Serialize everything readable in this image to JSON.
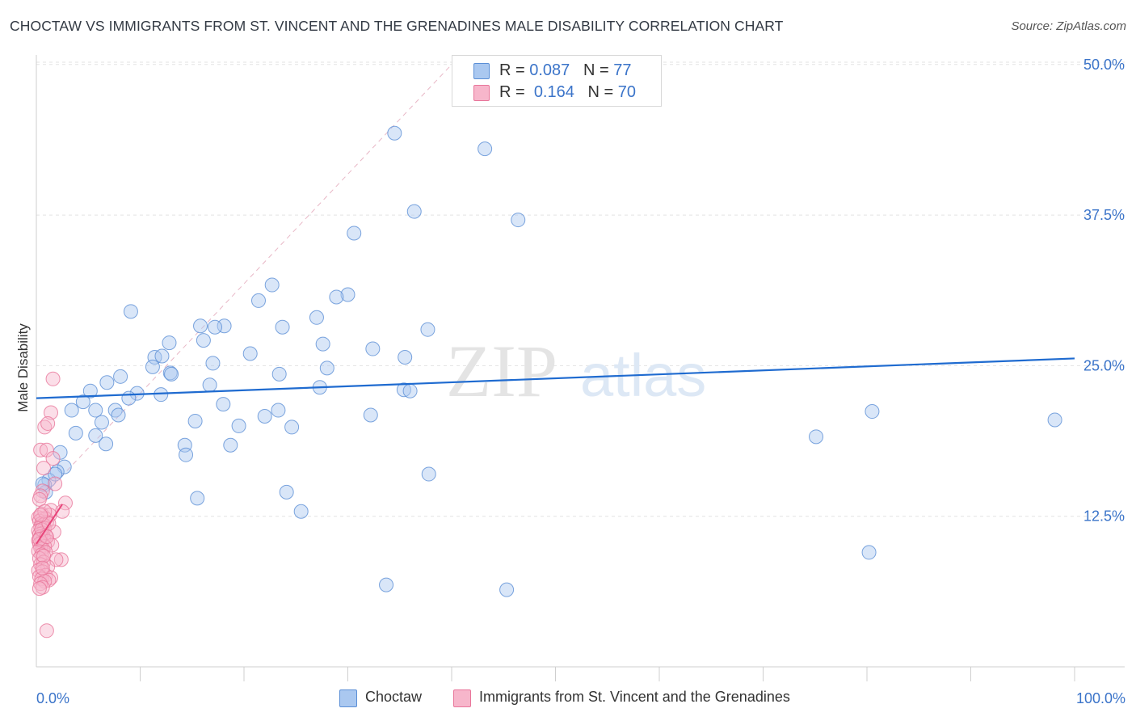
{
  "title": "CHOCTAW VS IMMIGRANTS FROM ST. VINCENT AND THE GRENADINES MALE DISABILITY CORRELATION CHART",
  "source": "Source: ZipAtlas.com",
  "watermark": {
    "zip": "ZIP",
    "atlas": "atlas"
  },
  "legend": {
    "r_label": "R =",
    "n_label": "N =",
    "rows": [
      {
        "r": "0.087",
        "n": "77"
      },
      {
        "r": "0.164",
        "n": "70"
      }
    ]
  },
  "colors": {
    "blue_fill": "#aac8f0",
    "blue_stroke": "#5b8fd6",
    "blue_line": "#1f6bd0",
    "pink_fill": "#f7b6cb",
    "pink_stroke": "#e8759a",
    "pink_line": "#e8457a",
    "tick_label": "#3b74c9"
  },
  "chart_data": {
    "type": "scatter",
    "title": "CHOCTAW VS IMMIGRANTS FROM ST. VINCENT AND THE GRENADINES MALE DISABILITY CORRELATION CHART",
    "xlabel": "",
    "ylabel": "Male Disability",
    "xlim": [
      0,
      100
    ],
    "ylim": [
      0,
      52
    ],
    "x_tick_labels": [
      "0.0%",
      "100.0%"
    ],
    "y_ticks": [
      12.5,
      25.0,
      37.5,
      50.0
    ],
    "y_tick_labels": [
      "12.5%",
      "25.0%",
      "37.5%",
      "50.0%"
    ],
    "series": [
      {
        "name": "Choctaw",
        "color": "blue",
        "trend": [
          [
            0,
            22.3
          ],
          [
            100,
            25.6
          ]
        ],
        "points": [
          [
            34.5,
            44.3
          ],
          [
            43.2,
            43.0
          ],
          [
            36.4,
            37.8
          ],
          [
            46.4,
            37.1
          ],
          [
            30.6,
            36.0
          ],
          [
            22.7,
            31.7
          ],
          [
            30.0,
            30.9
          ],
          [
            28.9,
            30.7
          ],
          [
            21.4,
            30.4
          ],
          [
            9.1,
            29.5
          ],
          [
            27.0,
            29.0
          ],
          [
            18.1,
            28.3
          ],
          [
            17.2,
            28.2
          ],
          [
            15.8,
            28.3
          ],
          [
            23.7,
            28.2
          ],
          [
            37.7,
            28.0
          ],
          [
            12.8,
            26.9
          ],
          [
            16.1,
            27.1
          ],
          [
            27.6,
            26.8
          ],
          [
            32.4,
            26.4
          ],
          [
            20.6,
            26.0
          ],
          [
            11.4,
            25.7
          ],
          [
            12.1,
            25.8
          ],
          [
            35.5,
            25.7
          ],
          [
            17.0,
            25.2
          ],
          [
            11.2,
            24.9
          ],
          [
            28.0,
            24.8
          ],
          [
            23.4,
            24.3
          ],
          [
            12.9,
            24.4
          ],
          [
            13.0,
            24.3
          ],
          [
            8.1,
            24.1
          ],
          [
            6.8,
            23.6
          ],
          [
            16.7,
            23.4
          ],
          [
            27.3,
            23.2
          ],
          [
            5.2,
            22.9
          ],
          [
            35.4,
            23.0
          ],
          [
            36.0,
            22.9
          ],
          [
            9.7,
            22.7
          ],
          [
            12.0,
            22.6
          ],
          [
            8.9,
            22.3
          ],
          [
            18.0,
            21.8
          ],
          [
            5.7,
            21.3
          ],
          [
            7.6,
            21.3
          ],
          [
            3.4,
            21.3
          ],
          [
            23.3,
            21.3
          ],
          [
            80.5,
            21.2
          ],
          [
            7.9,
            20.9
          ],
          [
            22.0,
            20.8
          ],
          [
            32.2,
            20.9
          ],
          [
            98.1,
            20.5
          ],
          [
            15.3,
            20.4
          ],
          [
            6.3,
            20.3
          ],
          [
            19.5,
            20.0
          ],
          [
            24.6,
            19.9
          ],
          [
            3.8,
            19.4
          ],
          [
            5.7,
            19.2
          ],
          [
            75.1,
            19.1
          ],
          [
            6.7,
            18.5
          ],
          [
            18.7,
            18.4
          ],
          [
            14.3,
            18.4
          ],
          [
            14.4,
            17.6
          ],
          [
            2.3,
            17.8
          ],
          [
            2.7,
            16.6
          ],
          [
            2.0,
            16.2
          ],
          [
            37.8,
            16.0
          ],
          [
            1.2,
            15.5
          ],
          [
            0.8,
            15.1
          ],
          [
            24.1,
            14.5
          ],
          [
            15.5,
            14.0
          ],
          [
            25.5,
            12.9
          ],
          [
            80.2,
            9.5
          ],
          [
            33.7,
            6.8
          ],
          [
            45.3,
            6.4
          ],
          [
            0.9,
            14.5
          ],
          [
            0.6,
            15.2
          ],
          [
            1.8,
            16.0
          ],
          [
            4.5,
            22.0
          ]
        ]
      },
      {
        "name": "Immigrants from St. Vincent and the Grenadines",
        "color": "pink",
        "trend": [
          [
            0,
            10.2
          ],
          [
            2.5,
            13.5
          ]
        ],
        "points": [
          [
            1.6,
            23.9
          ],
          [
            1.4,
            21.1
          ],
          [
            0.8,
            19.9
          ],
          [
            1.1,
            20.2
          ],
          [
            0.4,
            18.0
          ],
          [
            1.0,
            18.0
          ],
          [
            1.6,
            17.3
          ],
          [
            0.7,
            16.5
          ],
          [
            1.8,
            15.2
          ],
          [
            0.6,
            14.6
          ],
          [
            0.4,
            14.2
          ],
          [
            0.3,
            13.9
          ],
          [
            2.8,
            13.6
          ],
          [
            1.4,
            13.0
          ],
          [
            2.5,
            12.9
          ],
          [
            0.5,
            12.7
          ],
          [
            1.3,
            12.6
          ],
          [
            0.2,
            12.4
          ],
          [
            0.6,
            12.3
          ],
          [
            0.9,
            12.3
          ],
          [
            0.3,
            12.1
          ],
          [
            1.0,
            12.0
          ],
          [
            0.5,
            11.9
          ],
          [
            0.7,
            11.8
          ],
          [
            0.4,
            11.6
          ],
          [
            0.8,
            11.5
          ],
          [
            0.2,
            11.3
          ],
          [
            1.7,
            11.2
          ],
          [
            0.6,
            11.1
          ],
          [
            0.3,
            11.0
          ],
          [
            0.9,
            10.9
          ],
          [
            0.4,
            10.8
          ],
          [
            0.7,
            10.7
          ],
          [
            0.2,
            10.5
          ],
          [
            1.1,
            10.4
          ],
          [
            0.5,
            10.3
          ],
          [
            0.3,
            10.2
          ],
          [
            1.5,
            10.1
          ],
          [
            0.8,
            10.0
          ],
          [
            0.4,
            9.9
          ],
          [
            0.6,
            9.8
          ],
          [
            0.2,
            9.6
          ],
          [
            0.9,
            9.5
          ],
          [
            0.5,
            9.3
          ],
          [
            2.4,
            8.9
          ],
          [
            0.3,
            9.0
          ],
          [
            1.9,
            8.9
          ],
          [
            0.7,
            8.7
          ],
          [
            0.4,
            8.5
          ],
          [
            1.1,
            8.3
          ],
          [
            0.2,
            8.0
          ],
          [
            0.6,
            7.9
          ],
          [
            0.9,
            7.6
          ],
          [
            0.3,
            7.5
          ],
          [
            1.4,
            7.4
          ],
          [
            0.5,
            7.3
          ],
          [
            1.2,
            7.2
          ],
          [
            0.8,
            7.1
          ],
          [
            0.4,
            6.9
          ],
          [
            0.6,
            6.6
          ],
          [
            0.3,
            6.5
          ],
          [
            1.0,
            3.0
          ],
          [
            0.5,
            11.4
          ],
          [
            0.8,
            12.9
          ],
          [
            1.2,
            11.9
          ],
          [
            0.3,
            10.6
          ],
          [
            0.7,
            9.2
          ],
          [
            0.4,
            12.6
          ],
          [
            1.0,
            10.8
          ],
          [
            0.6,
            8.2
          ]
        ]
      }
    ],
    "diagonal_reference": [
      [
        0,
        13.6
      ],
      [
        40,
        50.0
      ]
    ]
  },
  "bottom_legend": [
    {
      "label": "Choctaw"
    },
    {
      "label": "Immigrants from St. Vincent and the Grenadines"
    }
  ]
}
